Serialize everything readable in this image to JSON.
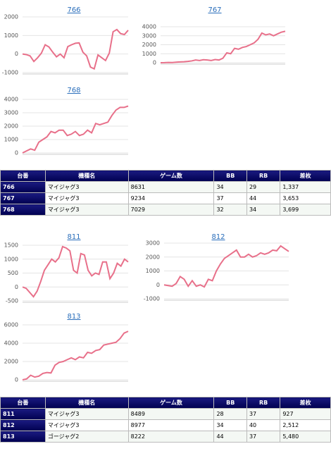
{
  "chart_data": [
    {
      "type": "line",
      "title": "766",
      "color": "#e8708a",
      "grid": true,
      "ylim": [
        -1000,
        2000
      ],
      "yticks": [
        -1000,
        0,
        1000,
        2000
      ],
      "values": [
        0,
        -30,
        -100,
        -400,
        -200,
        50,
        500,
        380,
        100,
        -150,
        0,
        -200,
        400,
        500,
        580,
        600,
        100,
        -100,
        -700,
        -800,
        -50,
        -200,
        -350,
        50,
        1200,
        1320,
        1100,
        1050,
        1280
      ]
    },
    {
      "type": "line",
      "title": "767",
      "color": "#e8708a",
      "grid": true,
      "ylim": [
        0,
        4000
      ],
      "yticks": [
        0,
        1000,
        2000,
        3000,
        4000
      ],
      "values": [
        0,
        10,
        30,
        20,
        60,
        90,
        110,
        150,
        200,
        300,
        250,
        330,
        300,
        250,
        350,
        300,
        500,
        1100,
        1000,
        1600,
        1500,
        1700,
        1800,
        2000,
        2200,
        2600,
        3300,
        3100,
        3200,
        3000,
        3200,
        3400,
        3500
      ]
    },
    {
      "type": "line",
      "title": "768",
      "color": "#e8708a",
      "grid": true,
      "ylim": [
        0,
        4000
      ],
      "yticks": [
        0,
        1000,
        2000,
        3000,
        4000
      ],
      "values": [
        0,
        150,
        300,
        200,
        800,
        1000,
        1200,
        1600,
        1500,
        1700,
        1700,
        1300,
        1400,
        1600,
        1300,
        1400,
        1700,
        1500,
        2200,
        2100,
        2200,
        2300,
        2800,
        3200,
        3400,
        3400,
        3500
      ]
    },
    {
      "type": "line",
      "title": "811",
      "color": "#e8708a",
      "grid": true,
      "ylim": [
        -500,
        1500
      ],
      "yticks": [
        -500,
        0,
        500,
        1000,
        1500
      ],
      "values": [
        0,
        -50,
        -200,
        -350,
        -150,
        200,
        600,
        800,
        1000,
        900,
        1050,
        1450,
        1400,
        1300,
        600,
        500,
        1200,
        1150,
        600,
        400,
        500,
        450,
        900,
        900,
        300,
        500,
        850,
        750,
        1000,
        900
      ]
    },
    {
      "type": "line",
      "title": "812",
      "color": "#e8708a",
      "grid": true,
      "ylim": [
        -1000,
        3000
      ],
      "yticks": [
        -1000,
        0,
        1000,
        2000,
        3000
      ],
      "values": [
        0,
        -50,
        -100,
        100,
        600,
        400,
        -100,
        300,
        -100,
        0,
        -150,
        400,
        300,
        1000,
        1500,
        1900,
        2100,
        2300,
        2500,
        2000,
        2000,
        2200,
        2000,
        2100,
        2300,
        2200,
        2300,
        2500,
        2450,
        2800,
        2600,
        2400
      ]
    },
    {
      "type": "line",
      "title": "813",
      "color": "#e8708a",
      "grid": true,
      "ylim": [
        0,
        6000
      ],
      "yticks": [
        0,
        2000,
        4000,
        6000
      ],
      "values": [
        0,
        100,
        500,
        300,
        400,
        700,
        800,
        750,
        1600,
        1900,
        2000,
        2200,
        2400,
        2200,
        2500,
        2400,
        3000,
        2900,
        3200,
        3300,
        3800,
        3900,
        4000,
        4100,
        4500,
        5100,
        5300
      ]
    }
  ],
  "tables": [
    {
      "header": [
        "台番",
        "機種名",
        "ゲーム数",
        "BB",
        "RB",
        "差枚"
      ],
      "rows": [
        [
          "766",
          "マイジャグ3",
          "8631",
          "34",
          "29",
          "1,337"
        ],
        [
          "767",
          "マイジャグ3",
          "9234",
          "37",
          "44",
          "3,653"
        ],
        [
          "768",
          "マイジャグ3",
          "7029",
          "32",
          "34",
          "3,699"
        ]
      ]
    },
    {
      "header": [
        "台番",
        "機種名",
        "ゲーム数",
        "BB",
        "RB",
        "差枚"
      ],
      "rows": [
        [
          "811",
          "マイジャグ3",
          "8489",
          "28",
          "37",
          "927"
        ],
        [
          "812",
          "マイジャグ3",
          "8977",
          "34",
          "40",
          "2,512"
        ],
        [
          "813",
          "ゴージャグ2",
          "8222",
          "44",
          "37",
          "5,480"
        ]
      ]
    }
  ]
}
